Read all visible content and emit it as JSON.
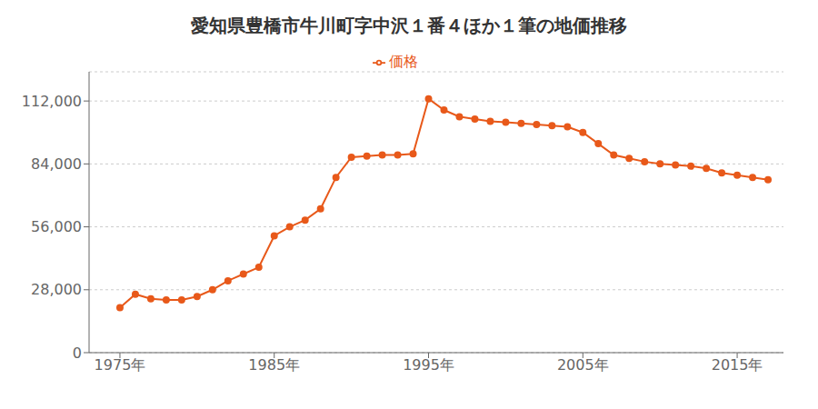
{
  "chart_data": {
    "type": "line",
    "title": "愛知県豊橋市牛川町字中沢１番４ほか１筆の地価推移",
    "x": [
      1975,
      1976,
      1977,
      1978,
      1979,
      1980,
      1981,
      1982,
      1983,
      1984,
      1985,
      1986,
      1987,
      1988,
      1989,
      1990,
      1991,
      1992,
      1993,
      1994,
      1995,
      1996,
      1997,
      1998,
      1999,
      2000,
      2001,
      2002,
      2003,
      2004,
      2005,
      2006,
      2007,
      2008,
      2009,
      2010,
      2011,
      2012,
      2013,
      2014,
      2015,
      2016,
      2017
    ],
    "series": [
      {
        "name": "価格",
        "color": "#E8591A",
        "marker": "circle",
        "values": [
          20000,
          26000,
          24000,
          23500,
          23500,
          25000,
          28000,
          32000,
          35000,
          38000,
          52000,
          56000,
          59000,
          64000,
          78000,
          87000,
          87500,
          88000,
          88000,
          88500,
          113000,
          108000,
          105000,
          104000,
          103000,
          102500,
          102000,
          101500,
          101000,
          100500,
          98000,
          93000,
          88000,
          86500,
          85000,
          84000,
          83500,
          83000,
          82000,
          80000,
          79000,
          78000,
          77000
        ]
      }
    ],
    "xlim": [
      1973,
      2018
    ],
    "xticks": [
      {
        "value": 1975,
        "label": "1975年"
      },
      {
        "value": 1985,
        "label": "1985年"
      },
      {
        "value": 1995,
        "label": "1995年"
      },
      {
        "value": 2005,
        "label": "2005年"
      },
      {
        "value": 2015,
        "label": "2015年"
      }
    ],
    "ylim": [
      0,
      125000
    ],
    "yticks": [
      0,
      {
        "value": 28000,
        "label": "28,000"
      },
      {
        "value": 56000,
        "label": "56,000"
      },
      {
        "value": 84000,
        "label": "84,000"
      },
      {
        "value": 112000,
        "label": "112,000"
      }
    ],
    "grid": "y",
    "legend": "top"
  }
}
